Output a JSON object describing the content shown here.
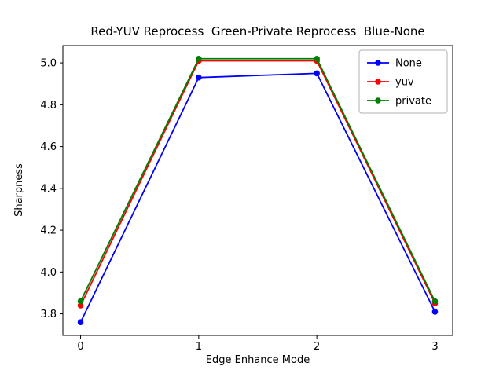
{
  "chart_data": {
    "type": "line",
    "title": "Red-YUV Reprocess  Green-Private Reprocess  Blue-None",
    "xlabel": "Edge Enhance Mode",
    "ylabel": "Sharpness",
    "x": [
      0,
      1,
      2,
      3
    ],
    "series": [
      {
        "name": "None",
        "color": "#0000ff",
        "values": [
          3.76,
          4.93,
          4.95,
          3.81
        ]
      },
      {
        "name": "yuv",
        "color": "#ff0000",
        "values": [
          3.84,
          5.01,
          5.01,
          3.85
        ]
      },
      {
        "name": "private",
        "color": "#008000",
        "values": [
          3.86,
          5.02,
          5.02,
          3.86
        ]
      }
    ],
    "xticks": [
      0,
      1,
      2,
      3
    ],
    "xtick_labels": [
      "0",
      "1",
      "2",
      "3"
    ],
    "yticks": [
      3.8,
      4.0,
      4.2,
      4.4,
      4.6,
      4.8,
      5.0
    ],
    "ytick_labels": [
      "3.8",
      "4.0",
      "4.2",
      "4.4",
      "4.6",
      "4.8",
      "5.0"
    ],
    "xlim": [
      -0.15,
      3.15
    ],
    "ylim": [
      3.697,
      5.083
    ],
    "grid": false,
    "legend_position": "upper right",
    "marker": "circle",
    "axis_color": "#000000",
    "legend_border_color": "#b0b0b0",
    "background_color": "#ffffff"
  }
}
